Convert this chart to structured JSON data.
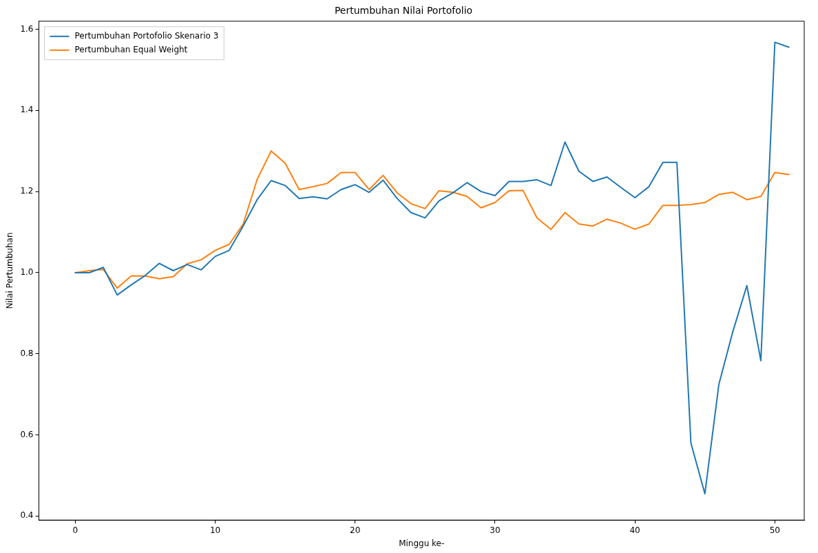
{
  "chart_data": {
    "type": "line",
    "title": "Pertumbuhan Nilai Portofolio",
    "xlabel": "Minggu ke-",
    "ylabel": "Nilai Pertumbuhan",
    "x": [
      0,
      1,
      2,
      3,
      4,
      5,
      6,
      7,
      8,
      9,
      10,
      11,
      12,
      13,
      14,
      15,
      16,
      17,
      18,
      19,
      20,
      21,
      22,
      23,
      24,
      25,
      26,
      27,
      28,
      29,
      30,
      31,
      32,
      33,
      34,
      35,
      36,
      37,
      38,
      39,
      40,
      41,
      42,
      43,
      44,
      45,
      46,
      47,
      48,
      49,
      50,
      51
    ],
    "series": [
      {
        "name": "Pertumbuhan Portofolio Skenario 3",
        "color": "#1f77b4",
        "values": [
          1.0,
          1.0,
          1.013,
          0.945,
          0.97,
          0.993,
          1.023,
          1.005,
          1.02,
          1.007,
          1.04,
          1.055,
          1.115,
          1.18,
          1.227,
          1.215,
          1.183,
          1.187,
          1.182,
          1.205,
          1.217,
          1.198,
          1.228,
          1.183,
          1.148,
          1.135,
          1.177,
          1.197,
          1.222,
          1.2,
          1.19,
          1.225,
          1.225,
          1.229,
          1.215,
          1.322,
          1.25,
          1.225,
          1.236,
          1.21,
          1.185,
          1.212,
          1.272,
          1.272,
          0.58,
          0.455,
          0.725,
          0.855,
          0.968,
          0.783,
          1.568,
          1.556
        ]
      },
      {
        "name": "Pertumbuhan Equal Weight",
        "color": "#ff7f0e",
        "values": [
          1.0,
          1.005,
          1.008,
          0.962,
          0.992,
          0.992,
          0.985,
          0.99,
          1.022,
          1.032,
          1.055,
          1.07,
          1.12,
          1.23,
          1.3,
          1.27,
          1.205,
          1.212,
          1.22,
          1.247,
          1.247,
          1.205,
          1.24,
          1.197,
          1.17,
          1.158,
          1.202,
          1.198,
          1.188,
          1.16,
          1.173,
          1.202,
          1.203,
          1.135,
          1.107,
          1.148,
          1.12,
          1.115,
          1.132,
          1.122,
          1.107,
          1.12,
          1.166,
          1.166,
          1.168,
          1.173,
          1.193,
          1.198,
          1.18,
          1.188,
          1.247,
          1.242
        ]
      }
    ],
    "xlim": [
      -2.6,
      52.1
    ],
    "ylim": [
      0.39,
      1.62
    ],
    "xticks": [
      0,
      10,
      20,
      30,
      40,
      50
    ],
    "yticks": [
      {
        "value": 0.4,
        "label": "0.4"
      },
      {
        "value": 0.6,
        "label": "0.6"
      },
      {
        "value": 0.8,
        "label": "0.8"
      },
      {
        "value": 1.0,
        "label": "1.0"
      },
      {
        "value": 1.2,
        "label": "1.2"
      },
      {
        "value": 1.4,
        "label": "1.4"
      },
      {
        "value": 1.6,
        "label": "1.6"
      }
    ],
    "grid": false,
    "legend": "top left",
    "marker": "none",
    "line_style": "solid"
  }
}
